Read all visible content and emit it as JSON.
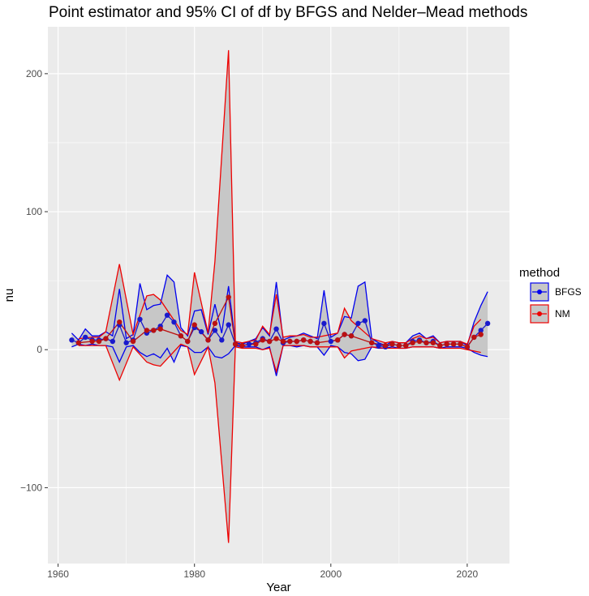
{
  "chart_data": {
    "type": "line",
    "title": "Point estimator and 95% CI of df by BFGS and Nelder–Mead methods",
    "xlabel": "Year",
    "ylabel": "nu",
    "xlim": [
      1958.5,
      2026.2
    ],
    "ylim": [
      -155,
      234
    ],
    "x_ticks": [
      1960,
      1980,
      2000,
      2020
    ],
    "x_tick_labels": [
      "1960",
      "1980",
      "2000",
      "2020"
    ],
    "y_ticks": [
      -100,
      0,
      100,
      200
    ],
    "y_tick_labels": [
      "−100",
      "0",
      "100",
      "200"
    ],
    "grid": true,
    "panel_background": "#ebebeb",
    "ribbon_fill": "#c7c7c7",
    "legend": {
      "title": "method",
      "position": "right",
      "entries": [
        {
          "label": "BFGS",
          "color": "#0000ee"
        },
        {
          "label": "NM",
          "color": "#ee0000"
        }
      ]
    },
    "series": [
      {
        "name": "BFGS",
        "line_color": "#0000ee",
        "point_color": "#1a1acc",
        "x": [
          1962,
          1963,
          1964,
          1965,
          1966,
          1967,
          1968,
          1969,
          1970,
          1971,
          1972,
          1973,
          1974,
          1975,
          1976,
          1977,
          1978,
          1979,
          1980,
          1981,
          1982,
          1983,
          1984,
          1985,
          1986,
          1987,
          1988,
          1989,
          1990,
          1991,
          1992,
          1993,
          1994,
          1995,
          1996,
          1997,
          1998,
          1999,
          2000,
          2001,
          2002,
          2003,
          2004,
          2005,
          2006,
          2007,
          2008,
          2009,
          2010,
          2011,
          2012,
          2013,
          2014,
          2015,
          2016,
          2017,
          2018,
          2019,
          2020,
          2021,
          2022,
          2023
        ],
        "y": [
          7,
          5,
          9,
          7,
          7,
          8,
          6,
          18,
          5,
          7,
          22,
          12,
          14,
          17,
          25,
          20,
          10,
          6,
          16,
          13,
          7,
          14,
          7,
          18,
          4,
          3,
          4,
          5,
          8,
          6,
          15,
          5,
          6,
          6,
          7,
          6,
          5,
          19,
          6,
          7,
          11,
          10,
          19,
          21,
          5,
          3,
          2,
          4,
          3,
          3,
          6,
          7,
          5,
          6,
          3,
          4,
          4,
          4,
          2,
          9,
          14,
          19
        ],
        "lower": [
          2,
          4,
          3,
          4,
          3,
          3,
          2,
          -9,
          2,
          3,
          -2,
          -5,
          -3,
          -6,
          1,
          -9,
          3,
          2,
          -2,
          -2,
          2,
          -5,
          -6,
          -3,
          3,
          2,
          2,
          2,
          0,
          2,
          -19,
          3,
          3,
          2,
          3,
          2,
          2,
          -4,
          3,
          2,
          -2,
          -3,
          -8,
          -7,
          2,
          1,
          1,
          2,
          1,
          1,
          2,
          2,
          2,
          2,
          1,
          2,
          2,
          2,
          1,
          -2,
          -4,
          -5
        ],
        "upper": [
          12,
          7,
          15,
          10,
          10,
          13,
          10,
          44,
          8,
          11,
          48,
          29,
          32,
          33,
          54,
          49,
          16,
          10,
          28,
          29,
          11,
          33,
          12,
          46,
          5,
          4,
          6,
          8,
          16,
          10,
          49,
          7,
          9,
          10,
          12,
          10,
          8,
          43,
          9,
          12,
          24,
          23,
          46,
          49,
          8,
          5,
          3,
          6,
          5,
          5,
          10,
          12,
          8,
          10,
          5,
          6,
          6,
          6,
          3,
          20,
          32,
          42
        ]
      },
      {
        "name": "NM",
        "line_color": "#ee0000",
        "point_color": "#bb1111",
        "x": [
          1963,
          1965,
          1966,
          1967,
          1969,
          1971,
          1973,
          1974,
          1975,
          1978,
          1979,
          1980,
          1982,
          1983,
          1985,
          1986,
          1987,
          1989,
          1990,
          1991,
          1992,
          1993,
          1994,
          1995,
          1996,
          1997,
          1998,
          2001,
          2002,
          2003,
          2006,
          2008,
          2009,
          2010,
          2011,
          2012,
          2013,
          2014,
          2015,
          2016,
          2017,
          2018,
          2019,
          2020,
          2021,
          2022
        ],
        "y": [
          5,
          6,
          6,
          8,
          20,
          6,
          14,
          14,
          15,
          10,
          6,
          18,
          7,
          19,
          38,
          4,
          3,
          4,
          7,
          6,
          8,
          6,
          6,
          6,
          7,
          6,
          5,
          7,
          11,
          10,
          5,
          3,
          4,
          3,
          3,
          5,
          6,
          5,
          5,
          3,
          4,
          4,
          4,
          2,
          9,
          11
        ],
        "lower": [
          3,
          3,
          3,
          3,
          -22,
          2,
          -9,
          -11,
          -12,
          4,
          2,
          -18,
          2,
          -24,
          -140,
          2,
          1,
          1,
          0,
          1,
          -16,
          3,
          3,
          3,
          3,
          2,
          2,
          2,
          -6,
          -1,
          2,
          1,
          1,
          1,
          1,
          2,
          2,
          2,
          2,
          1,
          1,
          1,
          1,
          0,
          -1,
          -2
        ],
        "upper": [
          8,
          9,
          9,
          13,
          62,
          11,
          39,
          40,
          36,
          14,
          11,
          56,
          12,
          64,
          217,
          6,
          5,
          7,
          17,
          11,
          40,
          9,
          10,
          10,
          11,
          9,
          9,
          12,
          30,
          21,
          8,
          5,
          6,
          5,
          5,
          8,
          10,
          8,
          9,
          5,
          6,
          6,
          6,
          4,
          17,
          22
        ]
      }
    ]
  }
}
